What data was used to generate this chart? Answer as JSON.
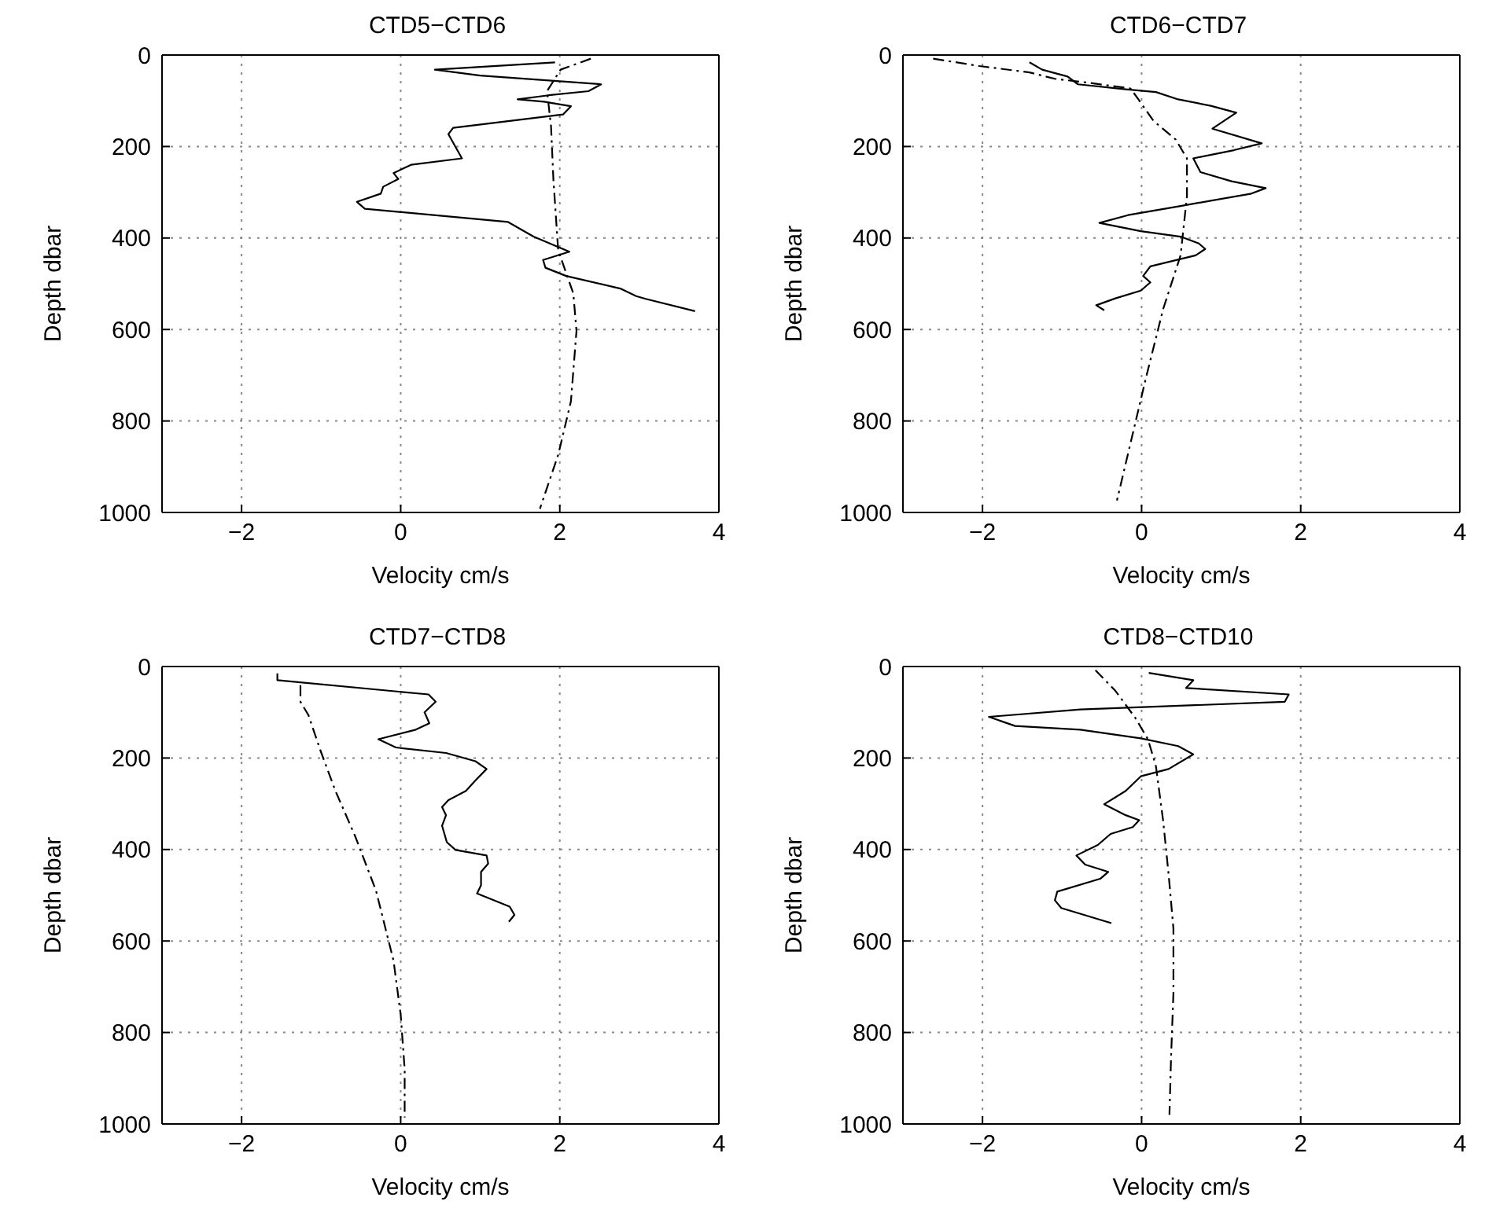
{
  "chart_data": [
    {
      "type": "line",
      "title": "CTD5−CTD6",
      "xlabel": "Velocity cm/s",
      "ylabel": "Depth dbar",
      "xlim": [
        -3,
        4
      ],
      "xticks": [
        -2,
        0,
        2,
        4
      ],
      "ylim": [
        1000,
        0
      ],
      "yticks": [
        0,
        200,
        400,
        600,
        800,
        1000
      ],
      "grid": true,
      "series": [
        {
          "color": "#000000",
          "line_style": "solid",
          "x": [
            1.94,
            0.43,
            1.0,
            2.52,
            2.36,
            1.86,
            1.47,
            1.8,
            2.14,
            2.04,
            0.66,
            0.6,
            0.77,
            0.13,
            -0.09,
            -0.03,
            -0.22,
            -0.25,
            -0.55,
            -0.45,
            1.35,
            1.67,
            2.12,
            1.79,
            1.82,
            2.08,
            2.77,
            2.96,
            3.08,
            3.7
          ],
          "values": [
            16,
            32,
            45,
            64,
            79,
            88,
            97,
            102,
            112,
            130,
            159,
            173,
            226,
            240,
            258,
            271,
            288,
            303,
            321,
            336,
            365,
            397,
            430,
            448,
            465,
            483,
            511,
            527,
            533,
            560
          ]
        },
        {
          "color": "#000000",
          "line_style": "dashed",
          "x": [
            2.39,
            2.01,
            1.84,
            1.89,
            1.92,
            1.98,
            2.17,
            2.21,
            2.14,
            1.98,
            1.75
          ],
          "values": [
            8,
            32,
            79,
            156,
            273,
            427,
            521,
            603,
            757,
            874,
            992
          ]
        }
      ]
    },
    {
      "type": "line",
      "title": "CTD6−CTD7",
      "xlabel": "Velocity cm/s",
      "ylabel": "Depth dbar",
      "xlim": [
        -3,
        4
      ],
      "xticks": [
        -2,
        0,
        2,
        4
      ],
      "ylim": [
        1000,
        0
      ],
      "yticks": [
        0,
        200,
        400,
        600,
        800,
        1000
      ],
      "grid": true,
      "series": [
        {
          "color": "#000000",
          "line_style": "solid",
          "x": [
            -1.41,
            -1.25,
            -0.93,
            -0.8,
            -0.2,
            0.18,
            0.46,
            0.87,
            1.19,
            0.89,
            1.51,
            1.16,
            0.65,
            0.74,
            1.13,
            1.56,
            1.38,
            0.49,
            -0.17,
            -0.53,
            -0.01,
            0.49,
            0.72,
            0.8,
            0.68,
            0.11,
            0.02,
            0.11,
            -0.01,
            -0.33,
            -0.57,
            -0.47
          ],
          "values": [
            16,
            32,
            47,
            64,
            75,
            81,
            97,
            111,
            126,
            161,
            193,
            208,
            226,
            256,
            276,
            291,
            303,
            330,
            350,
            367,
            385,
            397,
            412,
            424,
            438,
            462,
            483,
            497,
            515,
            532,
            547,
            558
          ]
        },
        {
          "color": "#000000",
          "line_style": "dashed",
          "x": [
            -2.62,
            -2.04,
            -1.41,
            -1.09,
            -0.65,
            -0.14,
            -0.04,
            0.15,
            0.43,
            0.57,
            0.57,
            0.49,
            0.27,
            0.05,
            -0.11,
            -0.31
          ],
          "values": [
            8,
            24,
            38,
            52,
            61,
            73,
            97,
            144,
            185,
            226,
            309,
            438,
            556,
            709,
            827,
            974
          ]
        }
      ]
    },
    {
      "type": "line",
      "title": "CTD7−CTD8",
      "xlabel": "Velocity cm/s",
      "ylabel": "Depth dbar",
      "xlim": [
        -3,
        4
      ],
      "xticks": [
        -2,
        0,
        2,
        4
      ],
      "ylim": [
        1000,
        0
      ],
      "yticks": [
        0,
        200,
        400,
        600,
        800,
        1000
      ],
      "grid": true,
      "series": [
        {
          "color": "#000000",
          "line_style": "solid",
          "x": [
            -1.55,
            -1.55,
            0.35,
            0.44,
            0.3,
            0.36,
            0.19,
            -0.28,
            -0.06,
            0.57,
            0.94,
            1.08,
            0.93,
            0.82,
            0.6,
            0.52,
            0.57,
            0.52,
            0.58,
            0.69,
            1.08,
            1.1,
            1.01,
            1.01,
            0.96,
            1.37,
            1.43,
            1.36
          ],
          "values": [
            15,
            30,
            61,
            77,
            100,
            124,
            138,
            159,
            177,
            189,
            207,
            224,
            251,
            272,
            292,
            307,
            325,
            348,
            384,
            401,
            413,
            431,
            449,
            478,
            496,
            525,
            543,
            558
          ]
        },
        {
          "color": "#000000",
          "line_style": "dashed",
          "x": [
            -1.26,
            -1.26,
            -1.16,
            -1.01,
            -0.82,
            -0.57,
            -0.31,
            -0.09,
            0.0,
            0.05,
            0.05
          ],
          "values": [
            41,
            77,
            106,
            183,
            272,
            372,
            490,
            643,
            761,
            880,
            986
          ]
        }
      ]
    },
    {
      "type": "line",
      "title": "CTD8−CTD10",
      "xlabel": "Velocity cm/s",
      "ylabel": "Depth dbar",
      "xlim": [
        -3,
        4
      ],
      "xticks": [
        -2,
        0,
        2,
        4
      ],
      "ylim": [
        1000,
        0
      ],
      "yticks": [
        0,
        200,
        400,
        600,
        800,
        1000
      ],
      "grid": true,
      "series": [
        {
          "color": "#000000",
          "line_style": "solid",
          "x": [
            0.09,
            0.65,
            0.56,
            1.85,
            1.8,
            -0.77,
            -1.92,
            -1.59,
            -0.77,
            -0.01,
            0.46,
            0.65,
            0.34,
            -0.01,
            -0.2,
            -0.47,
            -0.2,
            -0.03,
            -0.11,
            -0.39,
            -0.55,
            -0.82,
            -0.71,
            -0.42,
            -0.52,
            -1.06,
            -1.09,
            -1.01,
            -0.38
          ],
          "values": [
            14,
            30,
            47,
            61,
            77,
            94,
            110,
            130,
            138,
            157,
            174,
            192,
            224,
            240,
            272,
            301,
            325,
            336,
            351,
            366,
            390,
            413,
            433,
            449,
            464,
            492,
            511,
            528,
            561
          ]
        },
        {
          "color": "#000000",
          "line_style": "dashed",
          "x": [
            -0.58,
            -0.33,
            -0.08,
            0.08,
            0.18,
            0.27,
            0.34,
            0.4,
            0.4,
            0.37,
            0.35
          ],
          "values": [
            8,
            53,
            112,
            159,
            218,
            336,
            455,
            573,
            714,
            856,
            980
          ]
        }
      ]
    }
  ]
}
